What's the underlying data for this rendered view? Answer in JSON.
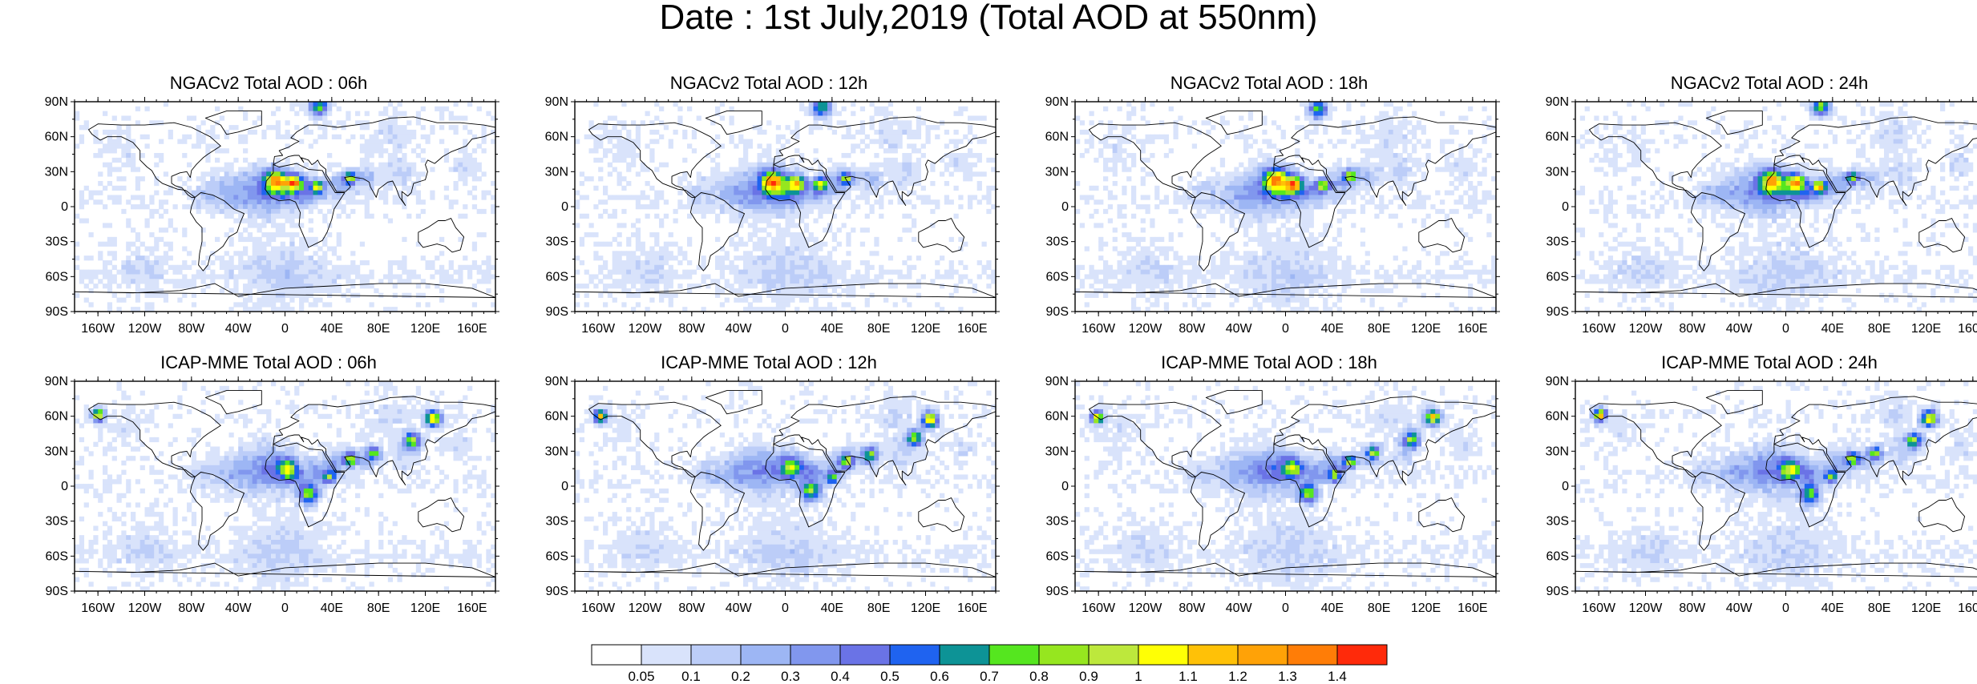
{
  "title": "Date : 1st July,2019 (Total AOD at 550nm)",
  "panels": [
    {
      "title": "NGACv2 Total AOD : 06h",
      "model": "NGACv2",
      "lead": "06h"
    },
    {
      "title": "NGACv2 Total AOD : 12h",
      "model": "NGACv2",
      "lead": "12h"
    },
    {
      "title": "NGACv2 Total AOD : 18h",
      "model": "NGACv2",
      "lead": "18h"
    },
    {
      "title": "NGACv2 Total AOD : 24h",
      "model": "NGACv2",
      "lead": "24h"
    },
    {
      "title": "ICAP-MME Total AOD : 06h",
      "model": "ICAP-MME",
      "lead": "06h"
    },
    {
      "title": "ICAP-MME Total AOD : 12h",
      "model": "ICAP-MME",
      "lead": "12h"
    },
    {
      "title": "ICAP-MME Total AOD : 18h",
      "model": "ICAP-MME",
      "lead": "18h"
    },
    {
      "title": "ICAP-MME Total AOD : 24h",
      "model": "ICAP-MME",
      "lead": "24h"
    }
  ],
  "axes": {
    "lat_ticks": [
      {
        "value": 90,
        "label": "90N"
      },
      {
        "value": 60,
        "label": "60N"
      },
      {
        "value": 30,
        "label": "30N"
      },
      {
        "value": 0,
        "label": "0"
      },
      {
        "value": -30,
        "label": "30S"
      },
      {
        "value": -60,
        "label": "60S"
      },
      {
        "value": -90,
        "label": "90S"
      }
    ],
    "lon_ticks": [
      {
        "value": -160,
        "label": "160W"
      },
      {
        "value": -120,
        "label": "120W"
      },
      {
        "value": -80,
        "label": "80W"
      },
      {
        "value": -40,
        "label": "40W"
      },
      {
        "value": 0,
        "label": "0"
      },
      {
        "value": 40,
        "label": "40E"
      },
      {
        "value": 80,
        "label": "80E"
      },
      {
        "value": 120,
        "label": "120E"
      },
      {
        "value": 160,
        "label": "160E"
      }
    ],
    "lon_range": [
      -180,
      180
    ],
    "lat_range": [
      -90,
      90
    ]
  },
  "colorbar": {
    "labels": [
      "0.05",
      "0.1",
      "0.2",
      "0.3",
      "0.4",
      "0.5",
      "0.6",
      "0.7",
      "0.8",
      "0.9",
      "1",
      "1.1",
      "1.2",
      "1.3",
      "1.4"
    ],
    "colors": [
      "#ffffff",
      "#d9e3fb",
      "#bccdf8",
      "#9db6f4",
      "#8197ee",
      "#6a73e6",
      "#1f63f0",
      "#0d9396",
      "#55e61f",
      "#96e61f",
      "#bde83c",
      "#ffff05",
      "#ffc107",
      "#ffa207",
      "#ff7d07",
      "#ff2a0a"
    ]
  }
}
